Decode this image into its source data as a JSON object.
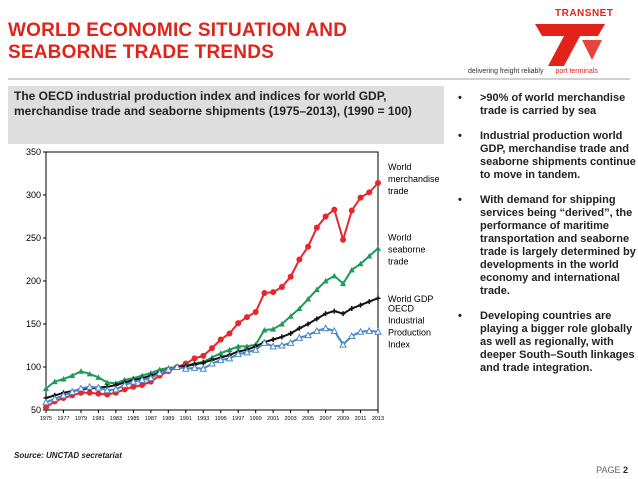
{
  "title": [
    "WORLD ECONOMIC SITUATION AND",
    "SEABORNE TRADE TRENDS"
  ],
  "logo": {
    "name": "TRANSNET",
    "tagline": "delivering freight reliably",
    "division": "port terminals"
  },
  "subtitle": "The OECD industrial production index and indices for world GDP, merchandise trade and seaborne shipments (1975–2013), (1990 = 100)",
  "source": "Source: UNCTAD secretariat",
  "bullets": [
    ">90% of world merchandise trade is carried by sea",
    "Industrial production world GDP, merchandise trade and seaborne shipments continue to move in tandem.",
    "With demand for shipping services being “derived”, the performance of maritime transportation and seaborne trade is largely determined by developments in the world economy and international trade.",
    "Developing countries are playing a bigger role globally as well as regionally, with deeper South–South linkages and trade integration."
  ],
  "bullet_symbol": "•",
  "page": {
    "label": "PAGE",
    "number": "2"
  },
  "colors": {
    "accent": "#e2231a",
    "merch": "#e8262b",
    "seaborne": "#1f9a5a",
    "gdp": "#111111",
    "oecd": "#4a86c5"
  },
  "chart_data": {
    "type": "line",
    "ylim": [
      50,
      350
    ],
    "yticks": [
      "50",
      "100",
      "150",
      "200",
      "250",
      "300",
      "350"
    ],
    "x": [
      1975,
      1976,
      1977,
      1978,
      1979,
      1980,
      1981,
      1982,
      1983,
      1984,
      1985,
      1986,
      1987,
      1988,
      1989,
      1990,
      1991,
      1992,
      1993,
      1994,
      1995,
      1996,
      1997,
      1998,
      1999,
      2000,
      2001,
      2002,
      2003,
      2004,
      2005,
      2006,
      2007,
      2008,
      2009,
      2010,
      2011,
      2012,
      2013
    ],
    "xticks": [
      "1975",
      "1977",
      "1979",
      "1981",
      "1983",
      "1985",
      "1987",
      "1989",
      "1991",
      "1993",
      "1995",
      "1997",
      "1999",
      "2001",
      "2003",
      "2005",
      "2007",
      "2009",
      "2011",
      "2013"
    ],
    "series": [
      {
        "name": "World merchandise trade",
        "label": [
          "World",
          "merchandise",
          "trade"
        ],
        "colorKey": "merch",
        "marker": "circle",
        "values": [
          53,
          60,
          64,
          67,
          70,
          70,
          69,
          68,
          70,
          74,
          77,
          79,
          83,
          90,
          95,
          100,
          104,
          110,
          113,
          122,
          132,
          139,
          151,
          158,
          164,
          186,
          187,
          193,
          205,
          225,
          240,
          262,
          275,
          283,
          248,
          282,
          297,
          303,
          314
        ]
      },
      {
        "name": "World seaborne trade",
        "label": [
          "World",
          "seaborne",
          "trade"
        ],
        "colorKey": "seaborne",
        "marker": "triangle",
        "values": [
          75,
          83,
          86,
          90,
          95,
          92,
          88,
          82,
          81,
          85,
          87,
          90,
          93,
          97,
          99,
          100,
          102,
          104,
          106,
          111,
          116,
          120,
          124,
          124,
          126,
          143,
          144,
          150,
          159,
          168,
          179,
          190,
          200,
          206,
          197,
          213,
          220,
          229,
          238
        ]
      },
      {
        "name": "World GDP",
        "label": [
          "World GDP"
        ],
        "colorKey": "gdp",
        "marker": "cross",
        "values": [
          64,
          67,
          70,
          72,
          74,
          75,
          76,
          77,
          79,
          82,
          85,
          87,
          90,
          94,
          97,
          100,
          101,
          103,
          105,
          108,
          111,
          114,
          118,
          120,
          124,
          129,
          132,
          135,
          139,
          145,
          150,
          156,
          162,
          165,
          162,
          168,
          172,
          176,
          180
        ]
      },
      {
        "name": "OECD Industrial Production Index",
        "label": [
          "OECD",
          "Industrial",
          "Production",
          "Index"
        ],
        "colorKey": "oecd",
        "marker": "triangle-open",
        "values": [
          59,
          63,
          67,
          71,
          75,
          77,
          76,
          73,
          74,
          79,
          83,
          85,
          87,
          93,
          97,
          100,
          98,
          99,
          98,
          104,
          108,
          110,
          115,
          117,
          120,
          128,
          124,
          125,
          128,
          134,
          137,
          142,
          145,
          142,
          126,
          136,
          141,
          142,
          141
        ]
      }
    ]
  }
}
